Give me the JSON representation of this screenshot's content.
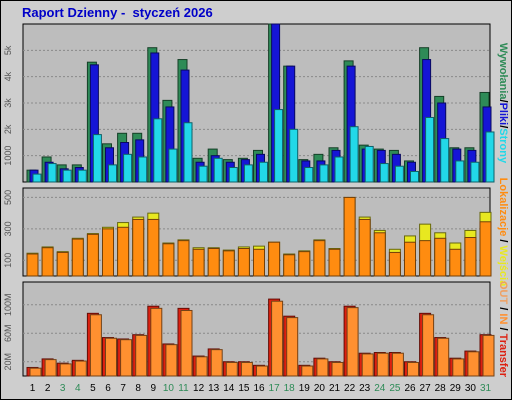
{
  "title": "Raport Dzienny -  styczeń 2026",
  "right_labels": {
    "upper": [
      {
        "text": "Wywołania",
        "color": "#2e8b57"
      },
      {
        "text": "/",
        "color": "#000000"
      },
      {
        "text": "Pliki",
        "color": "#1515d6"
      },
      {
        "text": "/",
        "color": "#000000"
      },
      {
        "text": "Strony",
        "color": "#22d8e8"
      }
    ],
    "middle": [
      {
        "text": "Lokalizacje",
        "color": "#ff8c10"
      },
      {
        "text": " / ",
        "color": "#000000"
      },
      {
        "text": "Wejścia",
        "color": "#e8e820"
      }
    ],
    "lower": [
      {
        "text": "OUT",
        "color": "#f0a060"
      },
      {
        "text": " / ",
        "color": "#000000"
      },
      {
        "text": "IN",
        "color": "#ff9030"
      },
      {
        "text": " / ",
        "color": "#000000"
      },
      {
        "text": "Transfer",
        "color": "#dd2010"
      }
    ]
  },
  "chart_data": [
    {
      "type": "bar",
      "categories": [
        "1",
        "2",
        "3",
        "4",
        "5",
        "6",
        "7",
        "8",
        "9",
        "10",
        "11",
        "12",
        "13",
        "14",
        "15",
        "16",
        "17",
        "18",
        "19",
        "20",
        "21",
        "22",
        "23",
        "24",
        "25",
        "26",
        "27",
        "28",
        "29",
        "30",
        "31"
      ],
      "weekend_days": [
        "3",
        "4",
        "10",
        "11",
        "17",
        "18",
        "24",
        "25",
        "31"
      ],
      "yticks": [
        {
          "v": 1000,
          "label": "1000"
        },
        {
          "v": 2000,
          "label": "2k"
        },
        {
          "v": 3000,
          "label": "3k"
        },
        {
          "v": 4000,
          "label": "4k"
        },
        {
          "v": 5000,
          "label": "5k"
        }
      ],
      "ylim": [
        0,
        6000
      ],
      "series": [
        {
          "name": "Wywołania",
          "color": "#2e8b57",
          "values": [
            450,
            950,
            650,
            650,
            4550,
            1450,
            1850,
            1850,
            5100,
            3100,
            4650,
            900,
            1250,
            850,
            900,
            1200,
            6000,
            4400,
            850,
            1050,
            1300,
            4600,
            1400,
            1250,
            1200,
            800,
            5100,
            3250,
            1300,
            1300,
            3400
          ]
        },
        {
          "name": "Pliki",
          "color": "#1515d6",
          "values": [
            450,
            750,
            500,
            550,
            4450,
            1300,
            1500,
            1600,
            4900,
            2850,
            4250,
            750,
            1000,
            750,
            850,
            1050,
            6000,
            4400,
            800,
            800,
            1200,
            4400,
            1250,
            1200,
            1050,
            750,
            4650,
            3000,
            1250,
            1200,
            2850
          ]
        },
        {
          "name": "Strony",
          "color": "#22d8e8",
          "values": [
            300,
            700,
            450,
            450,
            1800,
            650,
            1050,
            950,
            2400,
            1250,
            2250,
            600,
            900,
            550,
            650,
            750,
            2750,
            2000,
            550,
            650,
            950,
            2100,
            1350,
            700,
            600,
            400,
            2450,
            1650,
            800,
            750,
            1900
          ]
        }
      ]
    },
    {
      "type": "bar",
      "categories": [
        "1",
        "2",
        "3",
        "4",
        "5",
        "6",
        "7",
        "8",
        "9",
        "10",
        "11",
        "12",
        "13",
        "14",
        "15",
        "16",
        "17",
        "18",
        "19",
        "20",
        "21",
        "22",
        "23",
        "24",
        "25",
        "26",
        "27",
        "28",
        "29",
        "30",
        "31"
      ],
      "yticks": [
        {
          "v": 100,
          "label": "100"
        },
        {
          "v": 300,
          "label": "300"
        },
        {
          "v": 500,
          "label": "500"
        }
      ],
      "ylim": [
        0,
        560
      ],
      "series": [
        {
          "name": "Wejścia",
          "color": "#e8e820",
          "values": [
            145,
            185,
            155,
            240,
            270,
            310,
            340,
            375,
            400,
            210,
            230,
            180,
            180,
            165,
            185,
            190,
            215,
            140,
            160,
            230,
            175,
            500,
            375,
            290,
            170,
            255,
            330,
            275,
            210,
            290,
            405
          ]
        },
        {
          "name": "Lokalizacje",
          "color": "#ff8c10",
          "values": [
            140,
            180,
            150,
            235,
            265,
            300,
            310,
            360,
            360,
            205,
            225,
            170,
            175,
            160,
            175,
            170,
            215,
            135,
            155,
            225,
            170,
            500,
            360,
            275,
            150,
            215,
            225,
            240,
            170,
            245,
            345
          ]
        }
      ]
    },
    {
      "type": "bar",
      "categories": [
        "1",
        "2",
        "3",
        "4",
        "5",
        "6",
        "7",
        "8",
        "9",
        "10",
        "11",
        "12",
        "13",
        "14",
        "15",
        "16",
        "17",
        "18",
        "19",
        "20",
        "21",
        "22",
        "23",
        "24",
        "25",
        "26",
        "27",
        "28",
        "29",
        "30",
        "31"
      ],
      "yticks": [
        {
          "v": 20,
          "label": "20M"
        },
        {
          "v": 60,
          "label": "60M"
        },
        {
          "v": 100,
          "label": "100M"
        }
      ],
      "ylim": [
        0,
        132
      ],
      "series": [
        {
          "name": "Transfer",
          "color": "#dd2010",
          "values": [
            12,
            24,
            18,
            22,
            88,
            54,
            52,
            58,
            98,
            45,
            95,
            28,
            38,
            20,
            20,
            15,
            108,
            84,
            15,
            25,
            20,
            98,
            32,
            33,
            33,
            20,
            88,
            54,
            25,
            35,
            58
          ]
        },
        {
          "name": "IN",
          "color": "#ff9030",
          "values": [
            11,
            23,
            17,
            21,
            86,
            53,
            51,
            57,
            95,
            44,
            92,
            27,
            37,
            19,
            19,
            14,
            105,
            82,
            14,
            24,
            19,
            96,
            31,
            32,
            32,
            19,
            86,
            53,
            24,
            34,
            57
          ]
        }
      ]
    }
  ]
}
